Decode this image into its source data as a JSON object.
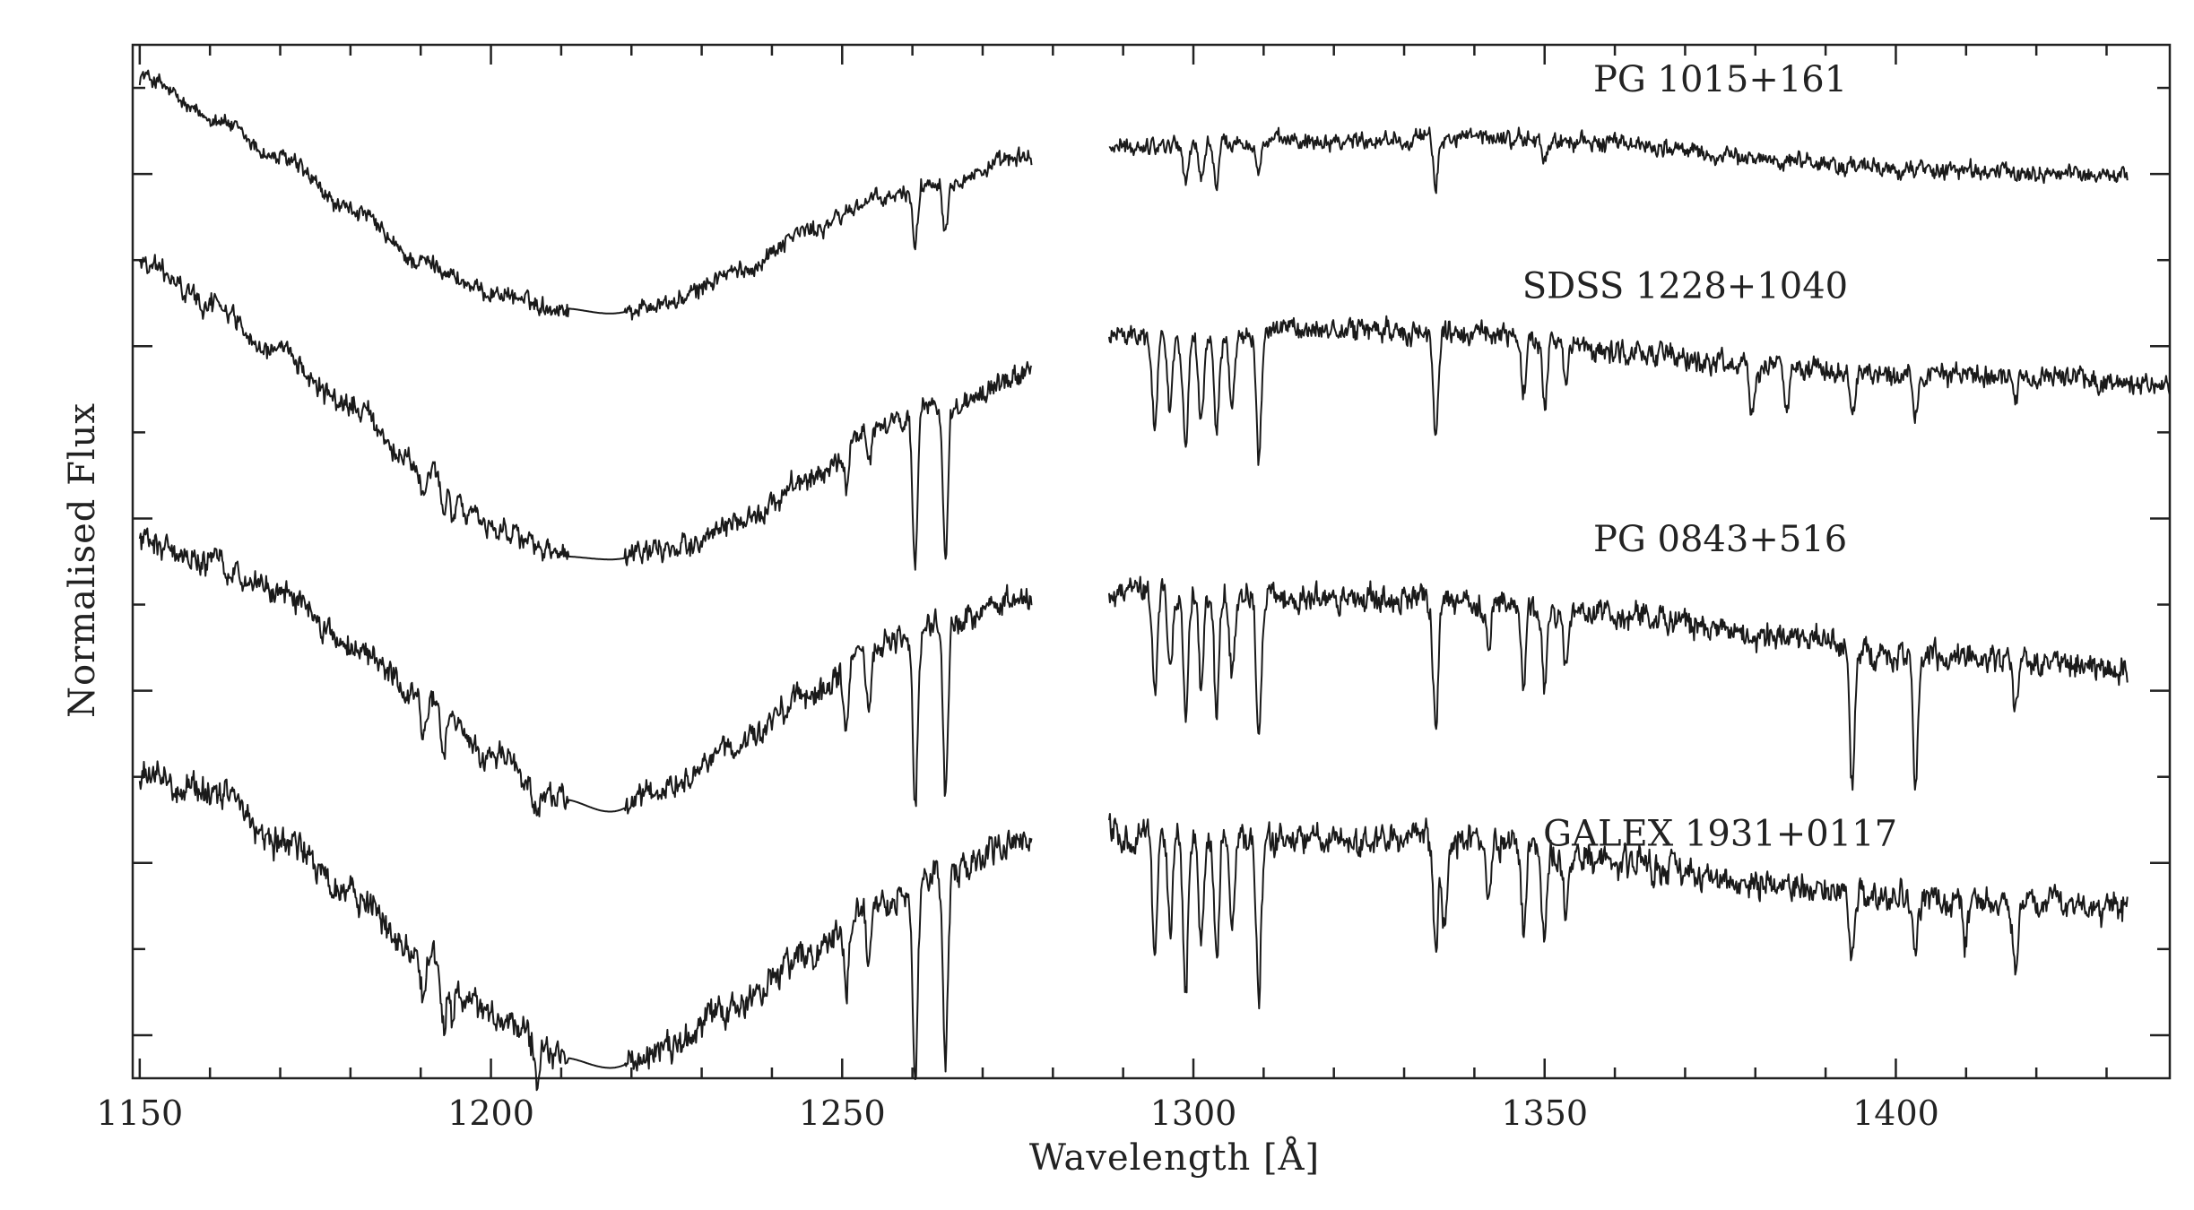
{
  "chart_data": {
    "type": "line",
    "title": "",
    "xlabel": "Wavelength [Å]",
    "ylabel": "Normalised Flux",
    "xlim": [
      1149,
      1439
    ],
    "ylim": [
      0,
      1
    ],
    "x_ticks": [
      1150,
      1200,
      1250,
      1300,
      1350,
      1400
    ],
    "x_minor_step": 10,
    "y_ticks_labeled": false,
    "y_tick_count": 12,
    "grid": false,
    "legend": "none",
    "gap": [
      1277,
      1288
    ],
    "series": [
      {
        "name": "PG 1015+161",
        "x_range": [
          1150,
          1433
        ],
        "x": [
          1150,
          1160,
          1170,
          1180,
          1190,
          1200,
          1210,
          1217,
          1225,
          1235,
          1245,
          1255,
          1265,
          1276,
          1288,
          1300,
          1320,
          1340,
          1360,
          1380,
          1400,
          1420,
          1433
        ],
        "level": [
          0.97,
          0.93,
          0.89,
          0.84,
          0.79,
          0.76,
          0.745,
          0.74,
          0.75,
          0.78,
          0.82,
          0.85,
          0.87,
          0.89,
          0.9,
          0.905,
          0.908,
          0.91,
          0.905,
          0.89,
          0.88,
          0.876,
          0.874
        ],
        "noise": 0.008,
        "absorption_lines": [
          {
            "x": 1260.4,
            "depth": 0.055
          },
          {
            "x": 1264.7,
            "depth": 0.05
          },
          {
            "x": 1298.9,
            "depth": 0.04
          },
          {
            "x": 1301.1,
            "depth": 0.038
          },
          {
            "x": 1303.3,
            "depth": 0.04
          },
          {
            "x": 1309.3,
            "depth": 0.03
          },
          {
            "x": 1334.5,
            "depth": 0.045
          },
          {
            "x": 1350.0,
            "depth": 0.02
          }
        ]
      },
      {
        "name": "SDSS 1228+1040",
        "x_range": [
          1150,
          1439
        ],
        "x": [
          1150,
          1160,
          1170,
          1180,
          1190,
          1200,
          1210,
          1217,
          1225,
          1235,
          1245,
          1255,
          1265,
          1276,
          1288,
          1300,
          1320,
          1340,
          1360,
          1380,
          1400,
          1420,
          1439
        ],
        "level": [
          0.79,
          0.75,
          0.7,
          0.65,
          0.59,
          0.535,
          0.505,
          0.502,
          0.51,
          0.535,
          0.58,
          0.63,
          0.65,
          0.68,
          0.72,
          0.715,
          0.725,
          0.72,
          0.705,
          0.69,
          0.68,
          0.68,
          0.67
        ],
        "noise": 0.01,
        "absorption_lines": [
          {
            "x": 1190.4,
            "depth": 0.03
          },
          {
            "x": 1193.3,
            "depth": 0.03
          },
          {
            "x": 1194.5,
            "depth": 0.02
          },
          {
            "x": 1250.6,
            "depth": 0.04
          },
          {
            "x": 1253.8,
            "depth": 0.04
          },
          {
            "x": 1260.4,
            "depth": 0.14
          },
          {
            "x": 1264.7,
            "depth": 0.14
          },
          {
            "x": 1294.5,
            "depth": 0.09
          },
          {
            "x": 1296.7,
            "depth": 0.07
          },
          {
            "x": 1298.9,
            "depth": 0.11
          },
          {
            "x": 1301.1,
            "depth": 0.08
          },
          {
            "x": 1303.3,
            "depth": 0.09
          },
          {
            "x": 1305.5,
            "depth": 0.07
          },
          {
            "x": 1309.3,
            "depth": 0.12
          },
          {
            "x": 1334.5,
            "depth": 0.1
          },
          {
            "x": 1347.0,
            "depth": 0.05
          },
          {
            "x": 1350.0,
            "depth": 0.07
          },
          {
            "x": 1353.0,
            "depth": 0.04
          },
          {
            "x": 1379.5,
            "depth": 0.05
          },
          {
            "x": 1384.5,
            "depth": 0.05
          },
          {
            "x": 1393.8,
            "depth": 0.04
          },
          {
            "x": 1402.8,
            "depth": 0.04
          },
          {
            "x": 1417.0,
            "depth": 0.03
          }
        ]
      },
      {
        "name": "PG 0843+516",
        "x_range": [
          1150,
          1433
        ],
        "x": [
          1150,
          1160,
          1170,
          1180,
          1190,
          1200,
          1210,
          1217,
          1225,
          1235,
          1245,
          1255,
          1265,
          1276,
          1288,
          1300,
          1320,
          1340,
          1360,
          1380,
          1400,
          1420,
          1433
        ],
        "level": [
          0.52,
          0.5,
          0.47,
          0.42,
          0.37,
          0.31,
          0.27,
          0.258,
          0.28,
          0.32,
          0.37,
          0.42,
          0.44,
          0.465,
          0.47,
          0.47,
          0.465,
          0.46,
          0.45,
          0.43,
          0.41,
          0.405,
          0.395
        ],
        "noise": 0.012,
        "absorption_lines": [
          {
            "x": 1190.4,
            "depth": 0.04
          },
          {
            "x": 1193.3,
            "depth": 0.04
          },
          {
            "x": 1206.5,
            "depth": 0.03
          },
          {
            "x": 1250.6,
            "depth": 0.06
          },
          {
            "x": 1253.8,
            "depth": 0.06
          },
          {
            "x": 1260.4,
            "depth": 0.17
          },
          {
            "x": 1264.7,
            "depth": 0.17
          },
          {
            "x": 1294.5,
            "depth": 0.1
          },
          {
            "x": 1296.7,
            "depth": 0.08
          },
          {
            "x": 1298.9,
            "depth": 0.12
          },
          {
            "x": 1301.1,
            "depth": 0.09
          },
          {
            "x": 1303.3,
            "depth": 0.11
          },
          {
            "x": 1305.5,
            "depth": 0.08
          },
          {
            "x": 1309.3,
            "depth": 0.14
          },
          {
            "x": 1334.5,
            "depth": 0.13
          },
          {
            "x": 1342.0,
            "depth": 0.05
          },
          {
            "x": 1347.0,
            "depth": 0.07
          },
          {
            "x": 1350.0,
            "depth": 0.08
          },
          {
            "x": 1353.0,
            "depth": 0.05
          },
          {
            "x": 1393.8,
            "depth": 0.13
          },
          {
            "x": 1402.8,
            "depth": 0.13
          },
          {
            "x": 1417.0,
            "depth": 0.05
          }
        ]
      },
      {
        "name": "GALEX 1931+0117",
        "x_range": [
          1150,
          1433
        ],
        "x": [
          1150,
          1160,
          1170,
          1180,
          1190,
          1200,
          1210,
          1217,
          1225,
          1235,
          1245,
          1255,
          1265,
          1276,
          1288,
          1300,
          1320,
          1340,
          1360,
          1380,
          1400,
          1420,
          1433
        ],
        "level": [
          0.29,
          0.28,
          0.23,
          0.18,
          0.12,
          0.06,
          0.02,
          0.01,
          0.03,
          0.07,
          0.12,
          0.17,
          0.2,
          0.23,
          0.235,
          0.235,
          0.23,
          0.23,
          0.21,
          0.19,
          0.175,
          0.17,
          0.165
        ],
        "noise": 0.014,
        "absorption_lines": [
          {
            "x": 1190.4,
            "depth": 0.05
          },
          {
            "x": 1193.3,
            "depth": 0.05
          },
          {
            "x": 1194.5,
            "depth": 0.04
          },
          {
            "x": 1206.5,
            "depth": 0.03
          },
          {
            "x": 1250.6,
            "depth": 0.06
          },
          {
            "x": 1253.8,
            "depth": 0.06
          },
          {
            "x": 1260.4,
            "depth": 0.18
          },
          {
            "x": 1264.7,
            "depth": 0.18
          },
          {
            "x": 1294.5,
            "depth": 0.12
          },
          {
            "x": 1296.7,
            "depth": 0.09
          },
          {
            "x": 1298.9,
            "depth": 0.14
          },
          {
            "x": 1301.1,
            "depth": 0.1
          },
          {
            "x": 1303.3,
            "depth": 0.12
          },
          {
            "x": 1305.5,
            "depth": 0.09
          },
          {
            "x": 1309.3,
            "depth": 0.15
          },
          {
            "x": 1334.5,
            "depth": 0.1
          },
          {
            "x": 1335.7,
            "depth": 0.08
          },
          {
            "x": 1342.0,
            "depth": 0.06
          },
          {
            "x": 1347.0,
            "depth": 0.08
          },
          {
            "x": 1350.0,
            "depth": 0.09
          },
          {
            "x": 1353.0,
            "depth": 0.06
          },
          {
            "x": 1393.8,
            "depth": 0.06
          },
          {
            "x": 1402.8,
            "depth": 0.06
          },
          {
            "x": 1410.0,
            "depth": 0.04
          },
          {
            "x": 1417.0,
            "depth": 0.06
          }
        ]
      }
    ]
  }
}
